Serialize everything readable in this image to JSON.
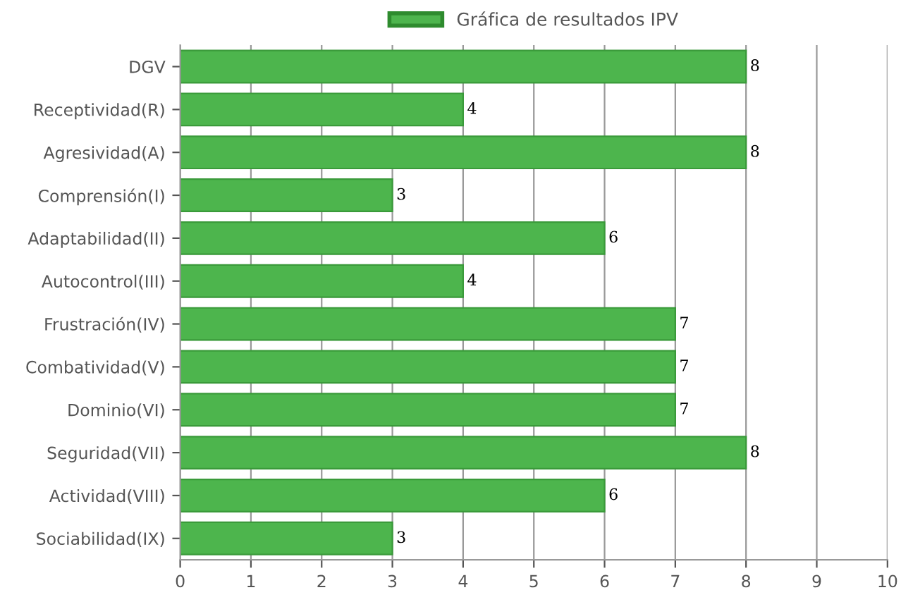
{
  "chart_data": {
    "type": "bar",
    "orientation": "horizontal",
    "categories": [
      "DGV",
      "Receptividad(R)",
      "Agresividad(A)",
      "Comprensión(I)",
      "Adaptabilidad(II)",
      "Autocontrol(III)",
      "Frustración(IV)",
      "Combatividad(V)",
      "Dominio(VI)",
      "Seguridad(VII)",
      "Actividad(VIII)",
      "Sociabilidad(IX)"
    ],
    "series": [
      {
        "name": "Gráfica de resultados IPV",
        "color": "#4db54d",
        "values": [
          8,
          4,
          8,
          3,
          6,
          4,
          7,
          7,
          7,
          8,
          6,
          3
        ]
      }
    ],
    "xlim": [
      0,
      10
    ],
    "xticks": [
      0,
      1,
      2,
      3,
      4,
      5,
      6,
      7,
      8,
      9,
      10
    ],
    "grid": "x",
    "legend": "top",
    "data_labels": true
  }
}
